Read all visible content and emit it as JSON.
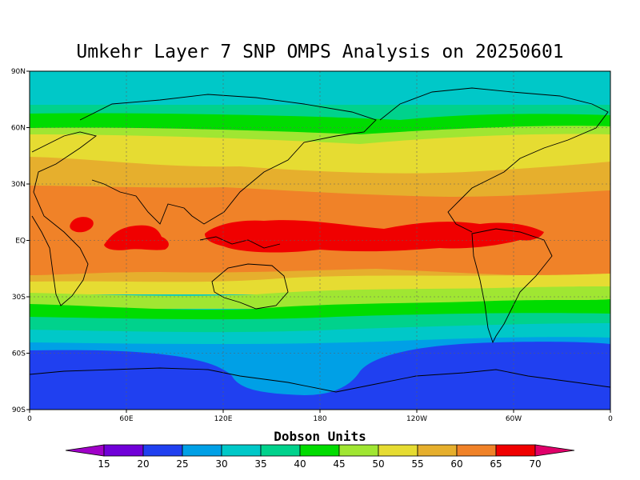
{
  "title": "Umkehr Layer 7 SNP OMPS Analysis on 20250601",
  "colorbar": {
    "title": "Dobson Units",
    "levels": [
      "15",
      "20",
      "25",
      "30",
      "35",
      "40",
      "45",
      "50",
      "55",
      "60",
      "65",
      "70"
    ],
    "colors": [
      "#a000c8",
      "#7000d8",
      "#2040f0",
      "#00a0e6",
      "#00c8c8",
      "#00d28c",
      "#00dc00",
      "#a0e632",
      "#e6dc32",
      "#e6af2d",
      "#f08228",
      "#f00000",
      "#e0006a"
    ]
  },
  "axes": {
    "lat_labels": [
      "90N",
      "60N",
      "30N",
      "EQ",
      "30S",
      "60S",
      "90S"
    ],
    "lon_labels": [
      "0",
      "60E",
      "120E",
      "180",
      "120W",
      "60W",
      "0"
    ]
  },
  "chart_data": {
    "type": "heatmap",
    "title": "Umkehr Layer 7 SNP OMPS Analysis on 20250601",
    "units": "Dobson Units",
    "lat_range": [
      -90,
      90
    ],
    "lon_range": [
      0,
      360
    ],
    "levels": [
      15,
      20,
      25,
      30,
      35,
      40,
      45,
      50,
      55,
      60,
      65,
      70
    ],
    "zonal_profile": [
      {
        "lat": 90,
        "du": 32
      },
      {
        "lat": 75,
        "du": 33
      },
      {
        "lat": 70,
        "du": 36
      },
      {
        "lat": 65,
        "du": 42
      },
      {
        "lat": 60,
        "du": 46
      },
      {
        "lat": 55,
        "du": 48
      },
      {
        "lat": 50,
        "du": 52
      },
      {
        "lat": 40,
        "du": 56
      },
      {
        "lat": 30,
        "du": 60
      },
      {
        "lat": 15,
        "du": 64
      },
      {
        "lat": 5,
        "du": 66
      },
      {
        "lat": 0,
        "du": 66
      },
      {
        "lat": -10,
        "du": 63
      },
      {
        "lat": -20,
        "du": 59
      },
      {
        "lat": -30,
        "du": 54
      },
      {
        "lat": -35,
        "du": 50
      },
      {
        "lat": -40,
        "du": 46
      },
      {
        "lat": -45,
        "du": 41
      },
      {
        "lat": -50,
        "du": 36
      },
      {
        "lat": -55,
        "du": 31
      },
      {
        "lat": -60,
        "du": 26
      },
      {
        "lat": -70,
        "du": 22
      },
      {
        "lat": -80,
        "du": 23
      },
      {
        "lat": -90,
        "du": 24
      }
    ],
    "grid": "dotted"
  }
}
